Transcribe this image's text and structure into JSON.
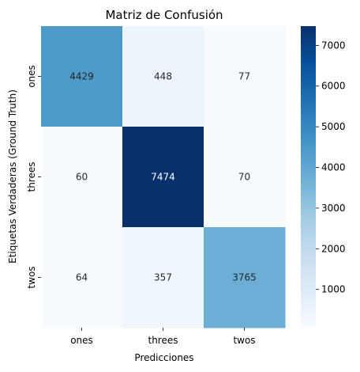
{
  "chart_data": {
    "type": "heatmap",
    "title": "Matriz de Confusión",
    "xlabel": "Predicciones",
    "ylabel": "Etiquetas Verdaderas (Ground Truth)",
    "x_categories": [
      "ones",
      "threes",
      "twos"
    ],
    "y_categories": [
      "ones",
      "threes",
      "twos"
    ],
    "values": [
      [
        4429,
        448,
        77
      ],
      [
        60,
        7474,
        70
      ],
      [
        64,
        357,
        3765
      ]
    ],
    "colormap": "Blues",
    "color_range": [
      60,
      7474
    ],
    "colorbar_ticks": [
      1000,
      2000,
      3000,
      4000,
      5000,
      6000,
      7000
    ],
    "annotations": true,
    "grid": false
  }
}
